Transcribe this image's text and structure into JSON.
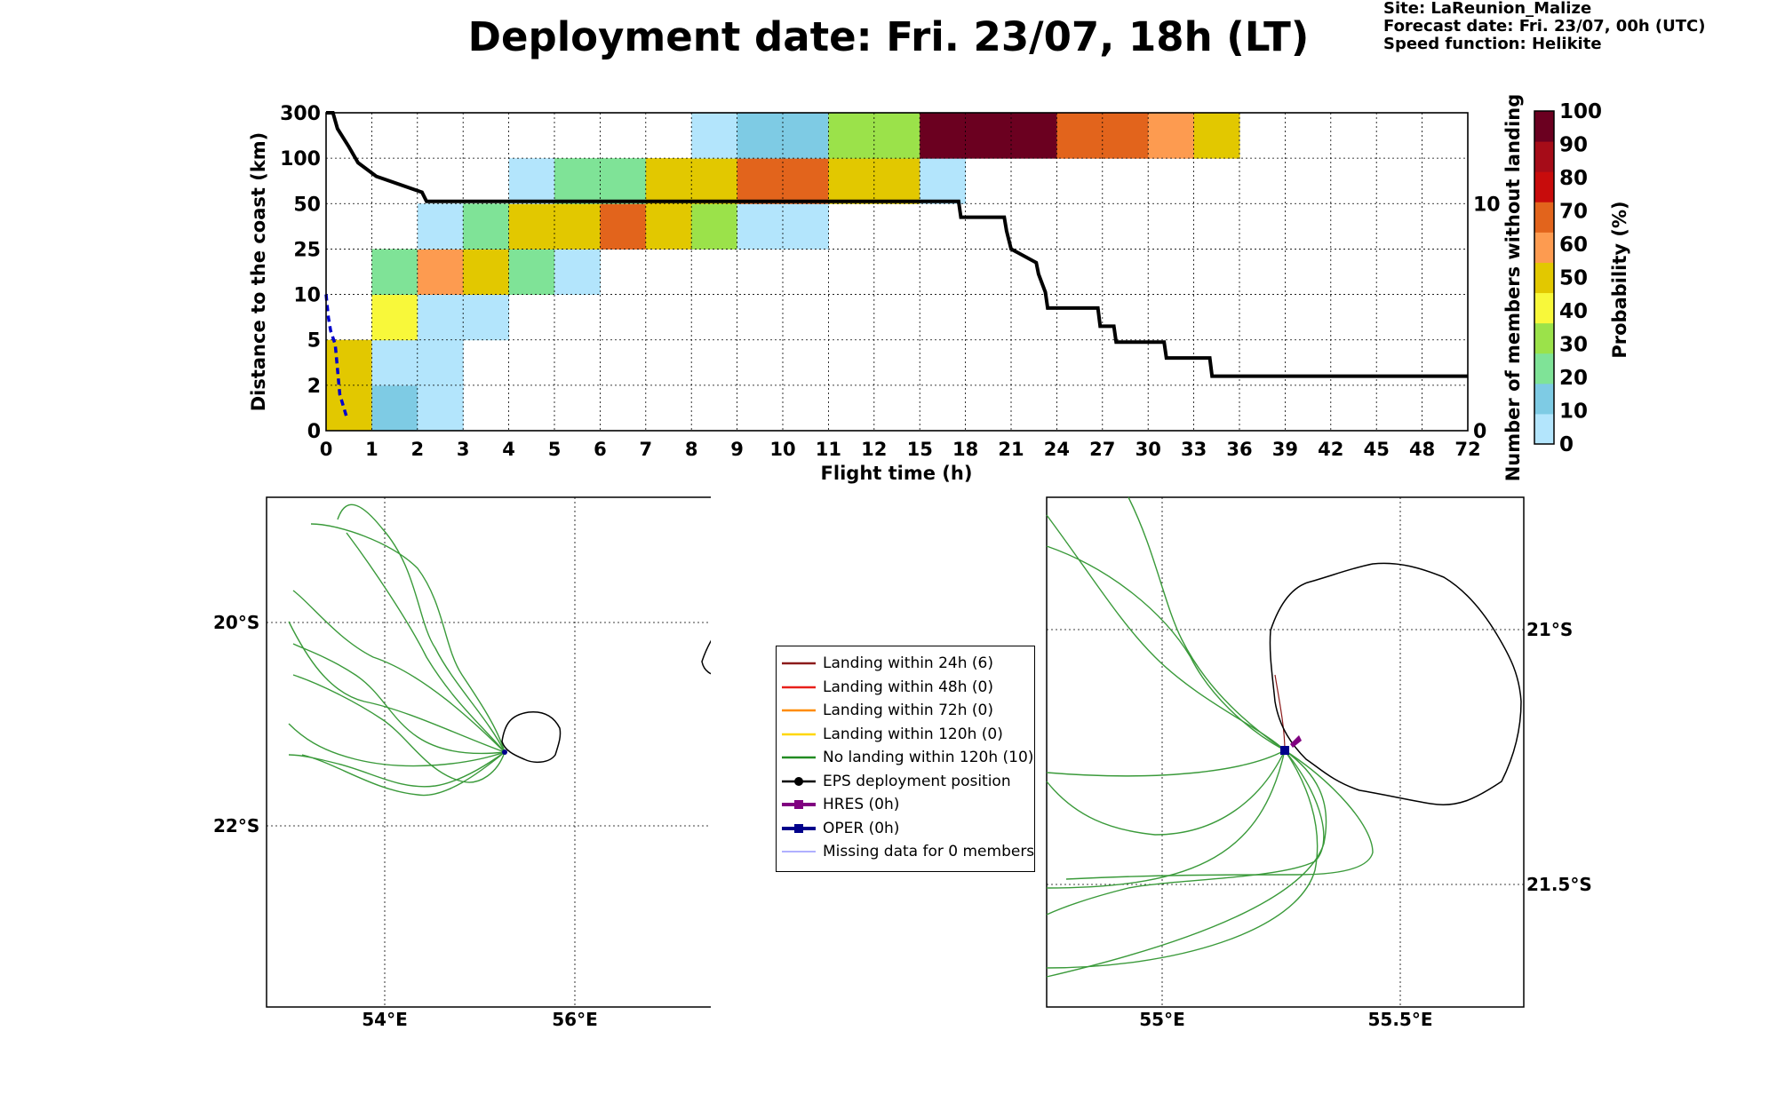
{
  "header": {
    "title": "Deployment date: Fri. 23/07, 18h (LT)",
    "site": "Site: LaReunion_Malize",
    "forecast": "Forecast date: Fri. 23/07, 00h (UTC)",
    "speed": "Speed function: Helikite"
  },
  "chart_data": [
    {
      "type": "heatmap",
      "xlabel": "Flight time (h)",
      "ylabel": "Distance to the coast (km)",
      "y2label": "Number of members without landing",
      "colorbar_label": "Probability (%)",
      "x_ticks": [
        "0",
        "1",
        "2",
        "3",
        "4",
        "5",
        "6",
        "7",
        "8",
        "9",
        "10",
        "11",
        "12",
        "15",
        "18",
        "21",
        "24",
        "27",
        "30",
        "33",
        "36",
        "39",
        "42",
        "45",
        "48",
        "72"
      ],
      "y_ticks": [
        "0",
        "2",
        "5",
        "10",
        "25",
        "50",
        "100",
        "300"
      ],
      "y2_ticks": [
        "0",
        "10"
      ],
      "y2_range": [
        0,
        14
      ],
      "colorbar_ticks": [
        "0",
        "10",
        "20",
        "30",
        "40",
        "50",
        "60",
        "70",
        "80",
        "90",
        "100"
      ],
      "colorbar_colors": [
        "#b3e5fc",
        "#7ecbe4",
        "#7fe397",
        "#9be24a",
        "#f8f83a",
        "#e2c800",
        "#fd9b50",
        "#e2641c",
        "#c80c0c",
        "#a60c18",
        "#6b0020"
      ],
      "grid": true,
      "cells": [
        {
          "x": 0,
          "y": 0,
          "value": 50
        },
        {
          "x": 1,
          "y": 0,
          "value": 10
        },
        {
          "x": 2,
          "y": 0,
          "value": 0
        },
        {
          "x": 0,
          "y": 1,
          "value": 50
        },
        {
          "x": 1,
          "y": 1,
          "value": 0
        },
        {
          "x": 2,
          "y": 1,
          "value": 0
        },
        {
          "x": 1,
          "y": 2,
          "value": 40
        },
        {
          "x": 2,
          "y": 2,
          "value": 0
        },
        {
          "x": 3,
          "y": 2,
          "value": 0
        },
        {
          "x": 1,
          "y": 3,
          "value": 20
        },
        {
          "x": 2,
          "y": 3,
          "value": 60
        },
        {
          "x": 3,
          "y": 3,
          "value": 50
        },
        {
          "x": 4,
          "y": 3,
          "value": 20
        },
        {
          "x": 5,
          "y": 3,
          "value": 0
        },
        {
          "x": 2,
          "y": 4,
          "value": 0
        },
        {
          "x": 3,
          "y": 4,
          "value": 20
        },
        {
          "x": 4,
          "y": 4,
          "value": 50
        },
        {
          "x": 5,
          "y": 4,
          "value": 50
        },
        {
          "x": 6,
          "y": 4,
          "value": 70
        },
        {
          "x": 7,
          "y": 4,
          "value": 50
        },
        {
          "x": 8,
          "y": 4,
          "value": 30
        },
        {
          "x": 9,
          "y": 4,
          "value": 0
        },
        {
          "x": 10,
          "y": 4,
          "value": 0
        },
        {
          "x": 4,
          "y": 5,
          "value": 0
        },
        {
          "x": 5,
          "y": 5,
          "value": 20
        },
        {
          "x": 6,
          "y": 5,
          "value": 20
        },
        {
          "x": 7,
          "y": 5,
          "value": 50
        },
        {
          "x": 8,
          "y": 5,
          "value": 50
        },
        {
          "x": 9,
          "y": 5,
          "value": 70
        },
        {
          "x": 10,
          "y": 5,
          "value": 70
        },
        {
          "x": 11,
          "y": 5,
          "value": 50
        },
        {
          "x": 12,
          "y": 5,
          "value": 50
        },
        {
          "x": 13,
          "y": 5,
          "value": 0
        },
        {
          "x": 8,
          "y": 6,
          "value": 0
        },
        {
          "x": 9,
          "y": 6,
          "value": 10
        },
        {
          "x": 10,
          "y": 6,
          "value": 10
        },
        {
          "x": 11,
          "y": 6,
          "value": 30
        },
        {
          "x": 12,
          "y": 6,
          "value": 30
        },
        {
          "x": 13,
          "y": 6,
          "value": 100
        },
        {
          "x": 14,
          "y": 6,
          "value": 100
        },
        {
          "x": 15,
          "y": 6,
          "value": 100
        },
        {
          "x": 16,
          "y": 6,
          "value": 70
        },
        {
          "x": 17,
          "y": 6,
          "value": 70
        },
        {
          "x": 18,
          "y": 6,
          "value": 60
        },
        {
          "x": 19,
          "y": 6,
          "value": 50
        }
      ],
      "members_without_landing": [
        [
          0,
          14
        ],
        [
          0.15,
          14
        ],
        [
          0.25,
          13.3
        ],
        [
          0.5,
          12.5
        ],
        [
          0.7,
          11.8
        ],
        [
          1.1,
          11.2
        ],
        [
          2.1,
          10.5
        ],
        [
          2.2,
          10.1
        ],
        [
          13.85,
          10.1
        ],
        [
          13.9,
          9.4
        ],
        [
          14.85,
          9.4
        ],
        [
          14.9,
          8.8
        ],
        [
          15.0,
          8.0
        ],
        [
          15.55,
          7.4
        ],
        [
          15.6,
          6.9
        ],
        [
          15.75,
          6.1
        ],
        [
          15.8,
          5.4
        ],
        [
          16.9,
          5.4
        ],
        [
          16.95,
          4.6
        ],
        [
          17.25,
          4.6
        ],
        [
          17.3,
          3.9
        ],
        [
          18.35,
          3.9
        ],
        [
          18.4,
          3.2
        ],
        [
          19.35,
          3.2
        ],
        [
          19.4,
          2.4
        ],
        [
          25,
          2.4
        ]
      ],
      "deployment_track_dashed": [
        [
          0,
          3
        ],
        [
          0.05,
          2.5
        ],
        [
          0.1,
          2.2
        ],
        [
          0.2,
          1.9
        ],
        [
          0.3,
          0.8
        ],
        [
          0.45,
          0.3
        ]
      ]
    }
  ],
  "maps": {
    "left": {
      "lat_labels": [
        "20°S",
        "22°S"
      ],
      "lon_labels": [
        "54°E",
        "56°E"
      ]
    },
    "right": {
      "lat_labels": [
        "21°S",
        "21.5°S"
      ],
      "lon_labels": [
        "55°E",
        "55.5°E"
      ]
    }
  },
  "legend": {
    "items": [
      {
        "label": "Landing within 24h (6)",
        "color": "#8b1a1a",
        "kind": "line"
      },
      {
        "label": "Landing within 48h (0)",
        "color": "#e8201a",
        "kind": "line"
      },
      {
        "label": "Landing within 72h (0)",
        "color": "#ff8c00",
        "kind": "line"
      },
      {
        "label": "Landing within 120h (0)",
        "color": "#ffd700",
        "kind": "line"
      },
      {
        "label": "No landing within 120h (10)",
        "color": "#228b22",
        "kind": "line"
      },
      {
        "label": "EPS deployment position",
        "color": "#000000",
        "kind": "dot"
      },
      {
        "label": "HRES (0h)",
        "color": "#800080",
        "kind": "square"
      },
      {
        "label": "OPER (0h)",
        "color": "#00008b",
        "kind": "square"
      },
      {
        "label": "Missing data for 0 members",
        "color": "#6060ff",
        "kind": "thin"
      }
    ]
  }
}
